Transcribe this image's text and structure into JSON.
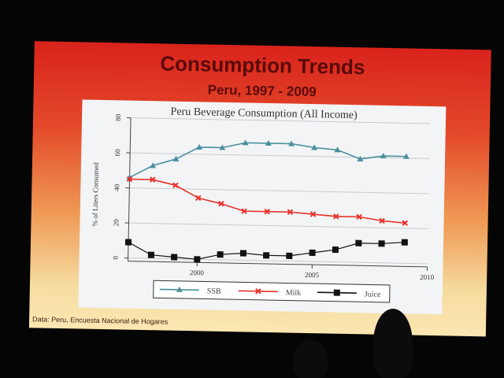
{
  "slide": {
    "title": "Consumption Trends",
    "subtitle": "Peru, 1997 - 2009",
    "footnote": "Data: Peru, Encuesta Nacional de Hogares"
  },
  "colors": {
    "ssb": "#4a8f9c",
    "milk": "#e8312a",
    "juice": "#111111",
    "grid": "#c8ccd0"
  },
  "chart_data": {
    "type": "line",
    "title": "Peru Beverage Consumption (All Income)",
    "xlabel": "",
    "ylabel": "% of Liters Consumed",
    "xlim": [
      1997,
      2010
    ],
    "ylim": [
      0,
      80
    ],
    "xticks": [
      2000,
      2005,
      2010
    ],
    "yticks": [
      0,
      20,
      40,
      60,
      80
    ],
    "grid": true,
    "legend": "bottom",
    "series": [
      {
        "name": "SSB",
        "marker": "triangle",
        "x": [
          1997,
          1998,
          1999,
          2000,
          2001,
          2002,
          2003,
          2004,
          2005,
          2006,
          2007,
          2008,
          2009
        ],
        "y": [
          46,
          53,
          57,
          64,
          64,
          67,
          67,
          67,
          65,
          64,
          59,
          61,
          61
        ]
      },
      {
        "name": "Milk",
        "marker": "x",
        "x": [
          1997,
          1998,
          1999,
          2000,
          2001,
          2002,
          2003,
          2004,
          2005,
          2006,
          2007,
          2008,
          2009
        ],
        "y": [
          45,
          45,
          42,
          35,
          32,
          28,
          28,
          28,
          27,
          26,
          26,
          24,
          23
        ]
      },
      {
        "name": "Juice",
        "marker": "square",
        "x": [
          1997,
          1998,
          1999,
          2000,
          2001,
          2002,
          2003,
          2004,
          2005,
          2006,
          2007,
          2008,
          2009
        ],
        "y": [
          9,
          2,
          1,
          0,
          3,
          4,
          3,
          3,
          5,
          7,
          11,
          11,
          12
        ]
      }
    ]
  }
}
